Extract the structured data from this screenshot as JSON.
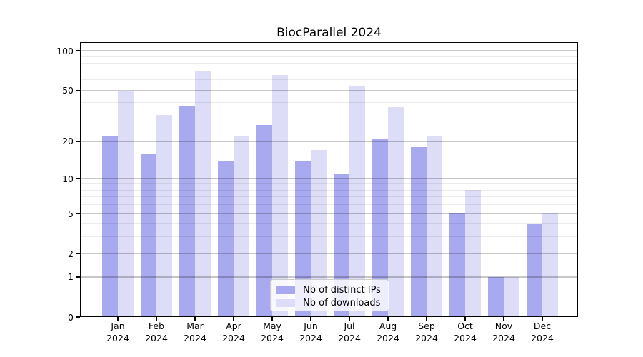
{
  "chart_data": {
    "type": "bar",
    "title": "BiocParallel 2024",
    "categories": [
      "Jan 2024",
      "Feb 2024",
      "Mar 2024",
      "Apr 2024",
      "May 2024",
      "Jun 2024",
      "Jul 2024",
      "Aug 2024",
      "Sep 2024",
      "Oct 2024",
      "Nov 2024",
      "Dec 2024"
    ],
    "series": [
      {
        "name": "Nb of distinct IPs",
        "color": "#a9a9f0",
        "values": [
          22,
          16,
          38,
          14,
          27,
          14,
          11,
          21,
          18,
          5,
          1,
          4
        ]
      },
      {
        "name": "Nb of downloads",
        "color": "#ddddf8",
        "values": [
          49,
          32,
          70,
          22,
          65,
          17,
          54,
          37,
          22,
          8,
          1,
          5
        ]
      }
    ],
    "xlabel": "",
    "ylabel": "",
    "yscale": "log1p",
    "ylim": [
      0,
      100
    ],
    "yticks": [
      0,
      1,
      2,
      5,
      10,
      20,
      50,
      100
    ],
    "minor_gridlines": [
      3,
      4,
      6,
      7,
      8,
      9,
      30,
      40,
      60,
      70,
      80,
      90
    ],
    "grid": true,
    "legend_position": "lower center"
  }
}
